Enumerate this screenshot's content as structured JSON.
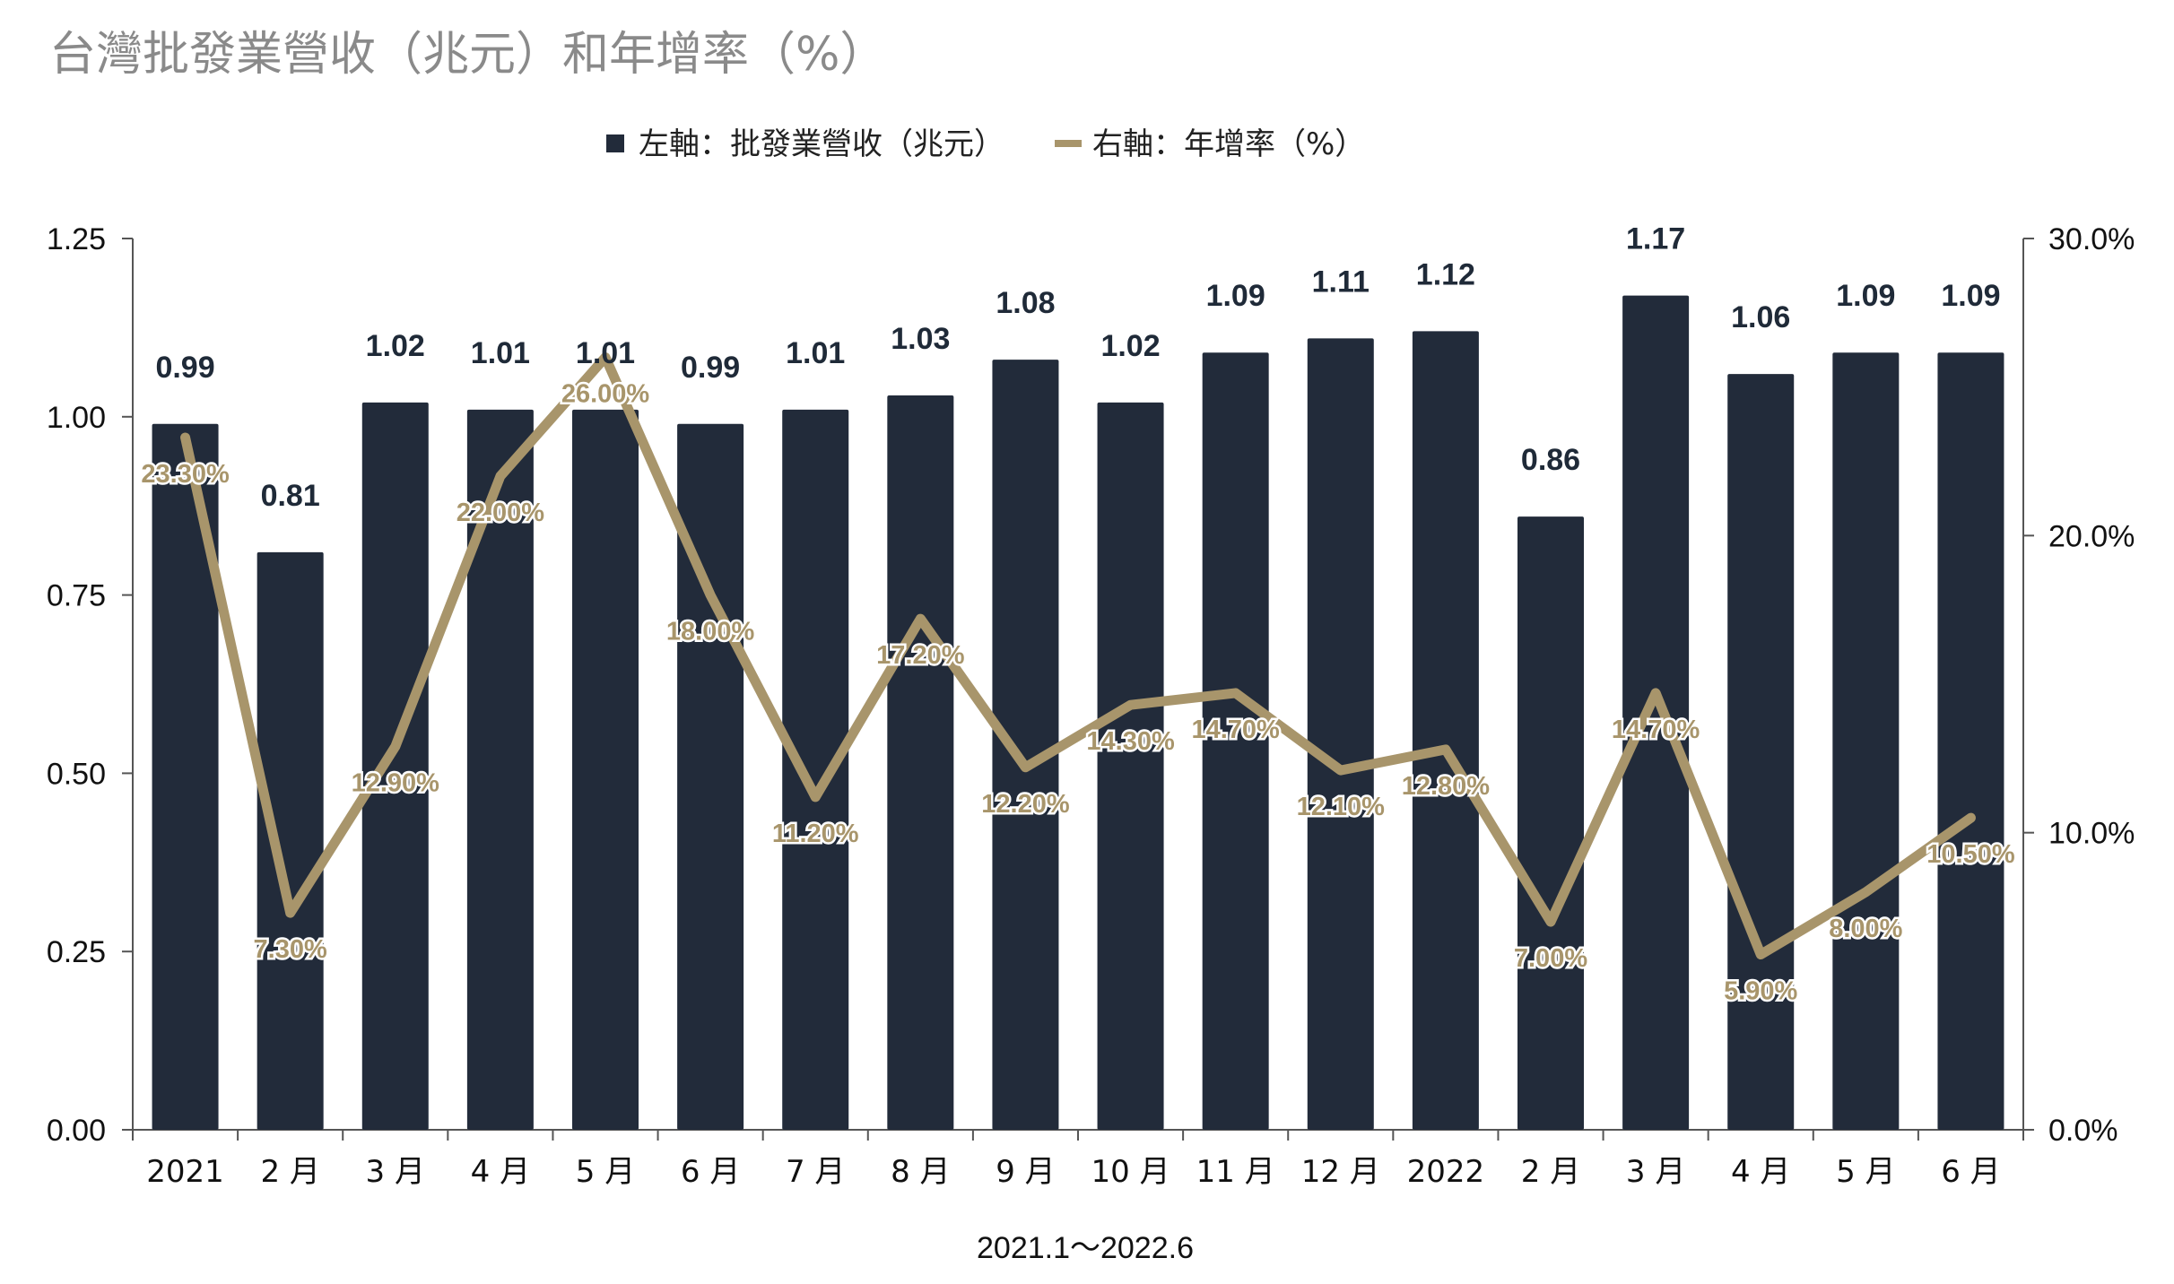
{
  "chart_data": {
    "type": "bar",
    "title": "台灣批發業營收（兆元）和年增率（%）",
    "xlabel": "2021.1～2022.6",
    "legend": {
      "placement": "top-center",
      "bar_label": "左軸：批發業營收（兆元）",
      "line_label": "右軸：年增率（%）"
    },
    "categories": [
      "2021",
      "2 月",
      "3 月",
      "4 月",
      "5 月",
      "6 月",
      "7 月",
      "8 月",
      "9 月",
      "10 月",
      "11 月",
      "12 月",
      "2022",
      "2 月",
      "3 月",
      "4 月",
      "5 月",
      "6 月"
    ],
    "series": [
      {
        "name": "左軸：批發業營收（兆元）",
        "type": "bar",
        "axis": "left",
        "values": [
          0.99,
          0.81,
          1.02,
          1.01,
          1.01,
          0.99,
          1.01,
          1.03,
          1.08,
          1.02,
          1.09,
          1.11,
          1.12,
          0.86,
          1.17,
          1.06,
          1.09,
          1.09
        ],
        "labels": [
          "0.99",
          "0.81",
          "1.02",
          "1.01",
          "1.01",
          "0.99",
          "1.01",
          "1.03",
          "1.08",
          "1.02",
          "1.09",
          "1.11",
          "1.12",
          "0.86",
          "1.17",
          "1.06",
          "1.09",
          "1.09"
        ]
      },
      {
        "name": "右軸：年增率（%）",
        "type": "line",
        "axis": "right",
        "values": [
          23.3,
          7.3,
          12.9,
          22.0,
          26.0,
          18.0,
          11.2,
          17.2,
          12.2,
          14.3,
          14.7,
          12.1,
          12.8,
          7.0,
          14.7,
          5.9,
          8.0,
          10.5
        ],
        "labels": [
          "23.30%",
          "7.30%",
          "12.90%",
          "22.00%",
          "26.00%",
          "18.00%",
          "11.20%",
          "17.20%",
          "12.20%",
          "14.30%",
          "14.70%",
          "12.10%",
          "12.80%",
          "7.00%",
          "14.70%",
          "5.90%",
          "8.00%",
          "10.50%"
        ]
      }
    ],
    "y_left": {
      "lim": [
        0,
        1.25
      ],
      "ticks": [
        "0.00",
        "0.25",
        "0.50",
        "0.75",
        "1.00",
        "1.25"
      ]
    },
    "y_right": {
      "lim": [
        0,
        30
      ],
      "ticks": [
        "0.0%",
        "10.0%",
        "20.0%",
        "30.0%"
      ]
    },
    "grid": false,
    "colors": {
      "bar": "#222b3a",
      "line": "#a8956b",
      "title": "#8a8a8a"
    }
  }
}
